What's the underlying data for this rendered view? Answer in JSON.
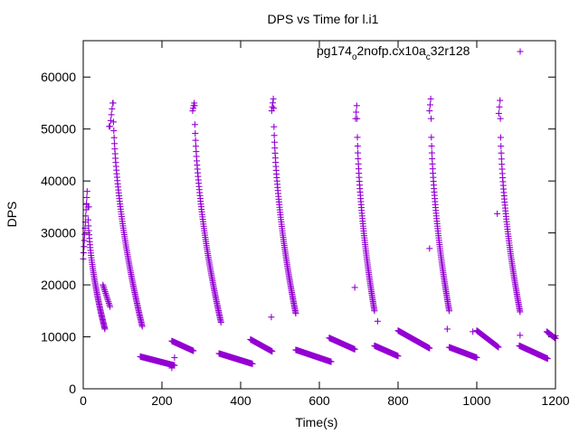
{
  "chart_data": {
    "type": "scatter",
    "title": "DPS vs Time for l.i1",
    "xlabel": "Time(s)",
    "ylabel": "DPS",
    "xlim": [
      0,
      1200
    ],
    "ylim": [
      0,
      67000
    ],
    "grid": false,
    "legend_position": "top-right",
    "xticks": [
      "0",
      "200",
      "400",
      "600",
      "800",
      "1000",
      "1200"
    ],
    "yticks": [
      "0",
      "10000",
      "20000",
      "30000",
      "40000",
      "50000",
      "60000"
    ],
    "series": [
      {
        "name_prefix": "pg174",
        "name_sub1": "o",
        "name_mid": "2nofp.cx10a",
        "name_sub2": "c",
        "name_suffix": "32r128",
        "color": "#9400d3",
        "marker": "plus",
        "segments": [
          {
            "x0": 0,
            "x1": 10,
            "y0": 25000,
            "y1": 38000,
            "n": 12
          },
          {
            "x0": 12,
            "x1": 55,
            "y0": 35000,
            "y1": 11500,
            "n": 60,
            "shape": "decay"
          },
          {
            "x0": 50,
            "x1": 68,
            "y0": 20000,
            "y1": 15800,
            "n": 14
          },
          {
            "x0": 68,
            "x1": 75,
            "y0": 50500,
            "y1": 55000,
            "n": 5
          },
          {
            "x0": 76,
            "x1": 150,
            "y0": 55000,
            "y1": 12000,
            "n": 90,
            "shape": "decay"
          },
          {
            "x0": 145,
            "x1": 232,
            "y0": 6200,
            "y1": 4500,
            "n": 60
          },
          {
            "x0": 225,
            "x1": 280,
            "y0": 9200,
            "y1": 7300,
            "n": 40
          },
          {
            "x0": 278,
            "x1": 282,
            "y0": 53500,
            "y1": 55000,
            "n": 4
          },
          {
            "x0": 283,
            "x1": 350,
            "y0": 54500,
            "y1": 12800,
            "n": 85,
            "shape": "decay"
          },
          {
            "x0": 345,
            "x1": 430,
            "y0": 6800,
            "y1": 4800,
            "n": 60
          },
          {
            "x0": 425,
            "x1": 480,
            "y0": 9500,
            "y1": 7200,
            "n": 40
          },
          {
            "x0": 479,
            "x1": 483,
            "y0": 53500,
            "y1": 55800,
            "n": 4
          },
          {
            "x0": 484,
            "x1": 540,
            "y0": 54000,
            "y1": 14500,
            "n": 80,
            "shape": "decay"
          },
          {
            "x0": 540,
            "x1": 630,
            "y0": 7500,
            "y1": 5200,
            "n": 60
          },
          {
            "x0": 625,
            "x1": 690,
            "y0": 9800,
            "y1": 7600,
            "n": 45
          },
          {
            "x0": 692,
            "x1": 695,
            "y0": 52000,
            "y1": 54500,
            "n": 3
          },
          {
            "x0": 696,
            "x1": 740,
            "y0": 52000,
            "y1": 15000,
            "n": 70,
            "shape": "decay"
          },
          {
            "x0": 740,
            "x1": 800,
            "y0": 8300,
            "y1": 6300,
            "n": 45
          },
          {
            "x0": 800,
            "x1": 880,
            "y0": 11200,
            "y1": 7800,
            "n": 55
          },
          {
            "x0": 880,
            "x1": 883,
            "y0": 53500,
            "y1": 55800,
            "n": 3
          },
          {
            "x0": 884,
            "x1": 930,
            "y0": 52000,
            "y1": 15000,
            "n": 70,
            "shape": "decay"
          },
          {
            "x0": 930,
            "x1": 1000,
            "y0": 8000,
            "y1": 6000,
            "n": 45
          },
          {
            "x0": 1000,
            "x1": 1055,
            "y0": 11200,
            "y1": 8000,
            "n": 40
          },
          {
            "x0": 1056,
            "x1": 1059,
            "y0": 53000,
            "y1": 55500,
            "n": 3
          },
          {
            "x0": 1060,
            "x1": 1110,
            "y0": 52000,
            "y1": 14800,
            "n": 70,
            "shape": "decay"
          },
          {
            "x0": 1108,
            "x1": 1180,
            "y0": 8300,
            "y1": 5800,
            "n": 50
          },
          {
            "x0": 1178,
            "x1": 1200,
            "y0": 11000,
            "y1": 9700,
            "n": 14
          }
        ],
        "outliers": [
          [
            8,
            35500
          ],
          [
            14,
            35000
          ],
          [
            66,
            50500
          ],
          [
            232,
            6000
          ],
          [
            225,
            4000
          ],
          [
            478,
            13800
          ],
          [
            690,
            19500
          ],
          [
            748,
            13000
          ],
          [
            880,
            27000
          ],
          [
            925,
            11500
          ],
          [
            1052,
            33700
          ],
          [
            1110,
            10300
          ],
          [
            990,
            11000
          ],
          [
            1200,
            10200
          ]
        ]
      }
    ]
  }
}
